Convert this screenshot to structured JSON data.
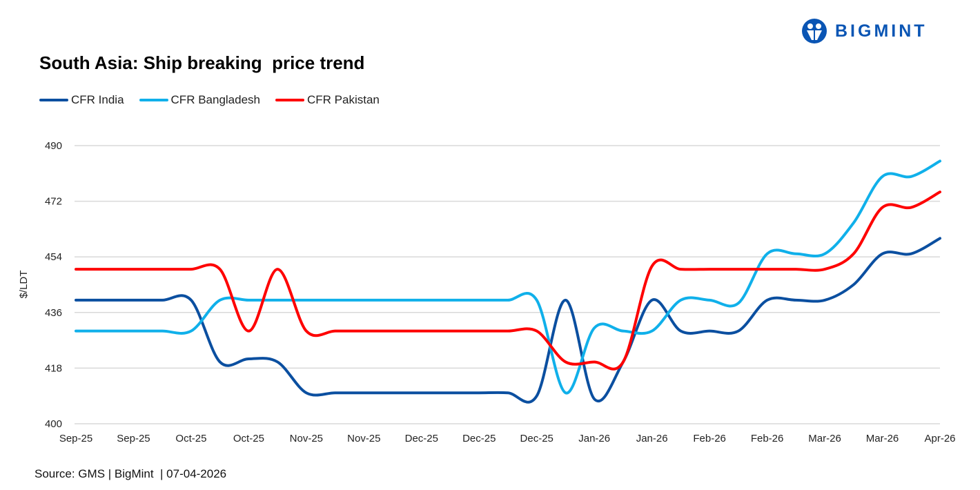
{
  "brand": {
    "name": "BIGMINT",
    "color": "#0a55b4"
  },
  "source": "Source: GMS | BigMint  | 07-04-2026",
  "chart_data": {
    "type": "line",
    "title": "South Asia: Ship breaking  price trend",
    "ylabel": "$/LDT",
    "xlabel": "",
    "ylim": [
      400,
      490
    ],
    "yticks": [
      400,
      418,
      436,
      454,
      472,
      490
    ],
    "grid": true,
    "legend": "top-left",
    "x_tick_labels": [
      "Sep-25",
      "Sep-25",
      "Oct-25",
      "Oct-25",
      "Nov-25",
      "Nov-25",
      "Dec-25",
      "Dec-25",
      "Dec-25",
      "Jan-26",
      "Jan-26",
      "Feb-26",
      "Feb-26",
      "Mar-26",
      "Mar-26",
      "Apr-26"
    ],
    "series": [
      {
        "name": "CFR India",
        "color": "#0b4fa0",
        "values": [
          440,
          440,
          440,
          440,
          440,
          420,
          421,
          420,
          410,
          410,
          410,
          410,
          410,
          410,
          410,
          410,
          409,
          440,
          408,
          420,
          440,
          430,
          430,
          430,
          440,
          440,
          440,
          445,
          455,
          455,
          460
        ]
      },
      {
        "name": "CFR Bangladesh",
        "color": "#10b0ea",
        "values": [
          430,
          430,
          430,
          430,
          430,
          440,
          440,
          440,
          440,
          440,
          440,
          440,
          440,
          440,
          440,
          440,
          440,
          410,
          431,
          430,
          430,
          440,
          440,
          439,
          455,
          455,
          455,
          465,
          480,
          480,
          485
        ]
      },
      {
        "name": "CFR Pakistan",
        "color": "#fe0000",
        "values": [
          450,
          450,
          450,
          450,
          450,
          450,
          430,
          450,
          430,
          430,
          430,
          430,
          430,
          430,
          430,
          430,
          430,
          420,
          420,
          420,
          451,
          450,
          450,
          450,
          450,
          450,
          450,
          455,
          470,
          470,
          475
        ]
      }
    ]
  }
}
